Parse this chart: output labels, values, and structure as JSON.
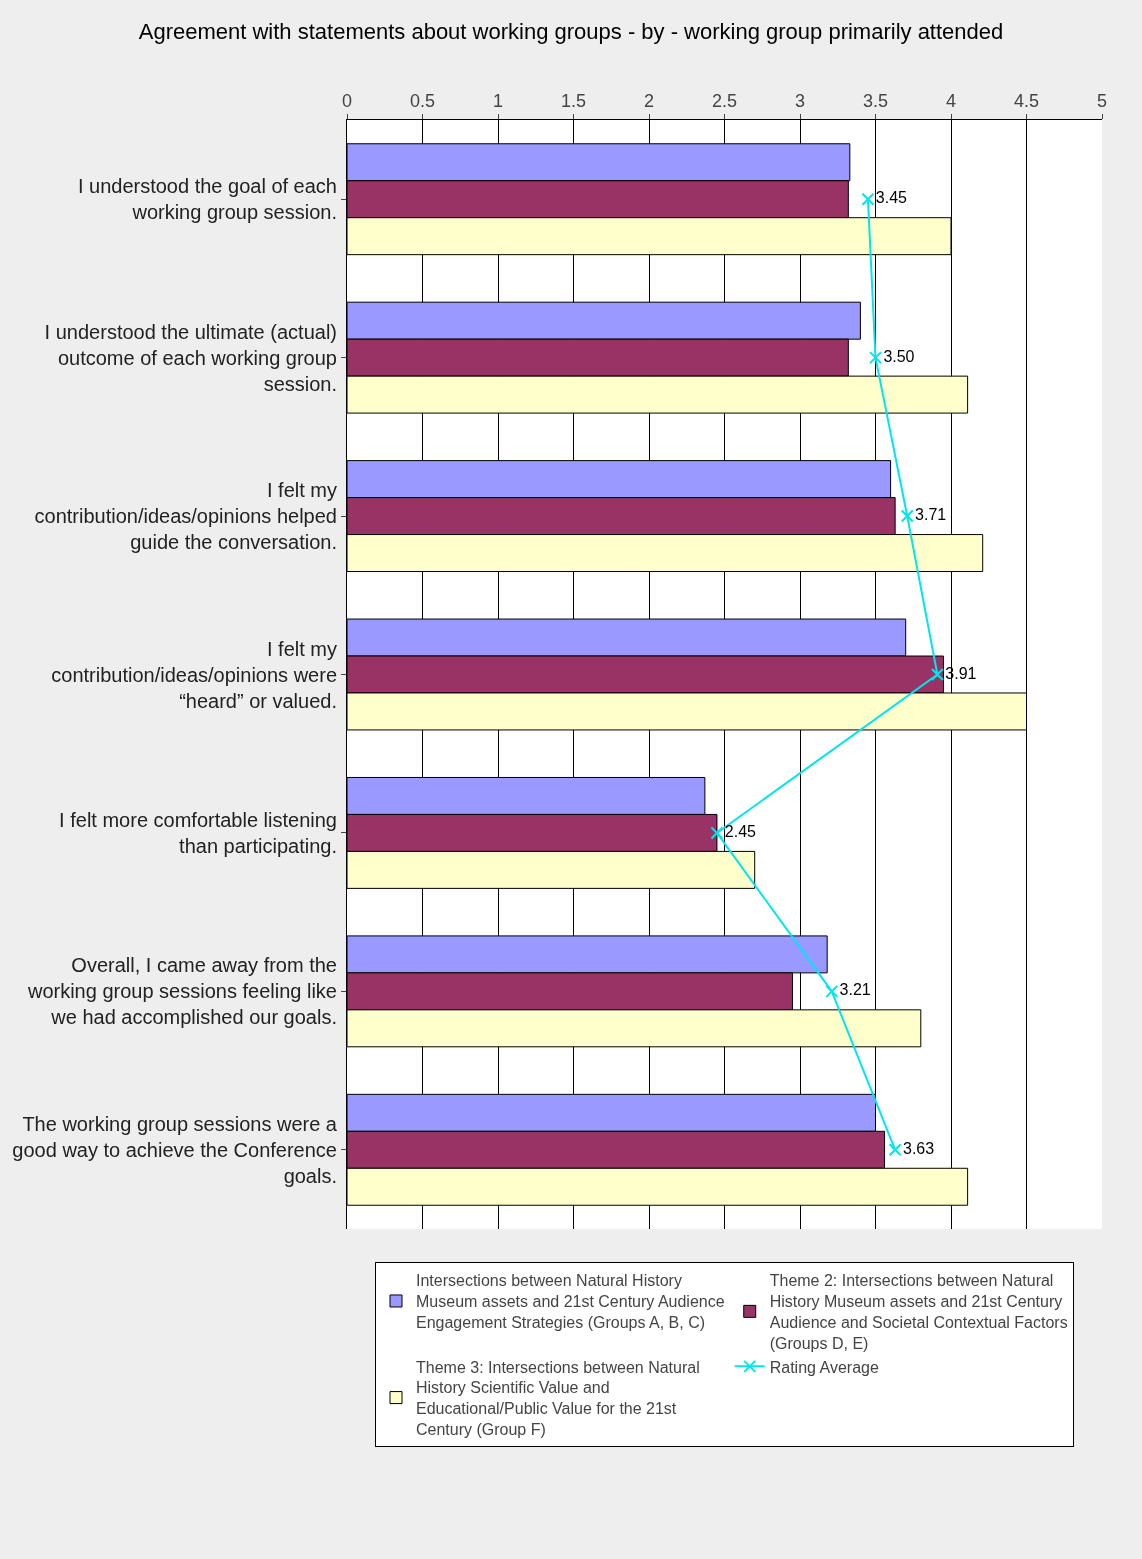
{
  "chart_data": {
    "type": "bar",
    "orientation": "horizontal",
    "title": "Agreement with statements about working groups - by - working group primarily attended",
    "categories": [
      "I understood the goal of each working group session.",
      "I understood the ultimate (actual) outcome of each working group session.",
      "I felt my contribution/ideas/opinions helped guide the conversation.",
      "I felt my contribution/ideas/opinions were “heard” or valued.",
      "I felt more comfortable listening than participating.",
      "Overall, I came away from the working group sessions feeling like we had accomplished our goals.",
      "The working group sessions were a good way to achieve the Conference goals."
    ],
    "series": [
      {
        "name": "Intersections between Natural History Museum assets and 21st Century Audience Engagement Strategies (Groups A, B, C)",
        "color": "#9999ff",
        "values": [
          3.33,
          3.4,
          3.6,
          3.7,
          2.37,
          3.18,
          3.5
        ]
      },
      {
        "name": "Theme 2: Intersections between Natural History Museum assets and 21st Century Audience and Societal Contextual Factors (Groups D, E)",
        "color": "#993366",
        "values": [
          3.32,
          3.32,
          3.63,
          3.95,
          2.45,
          2.95,
          3.56
        ]
      },
      {
        "name": "Theme 3: Intersections between Natural History Scientific Value and Educational/Public Value for the 21st Century (Group F)",
        "color": "#ffffcc",
        "values": [
          4.0,
          4.11,
          4.21,
          4.5,
          2.7,
          3.8,
          4.11
        ]
      },
      {
        "name": "Rating Average",
        "type": "line",
        "color": "#00e5ee",
        "marker": "cross",
        "values": [
          3.45,
          3.5,
          3.71,
          3.91,
          2.45,
          3.21,
          3.63
        ],
        "value_labels": [
          "3.45",
          "3.50",
          "3.71",
          "3.91",
          "2.45",
          "3.21",
          "3.63"
        ]
      }
    ],
    "xlim": [
      0,
      5
    ],
    "xticks": [
      0,
      0.5,
      1,
      1.5,
      2,
      2.5,
      3,
      3.5,
      4,
      4.5,
      5
    ],
    "grid": "x",
    "legend": "bottom"
  }
}
